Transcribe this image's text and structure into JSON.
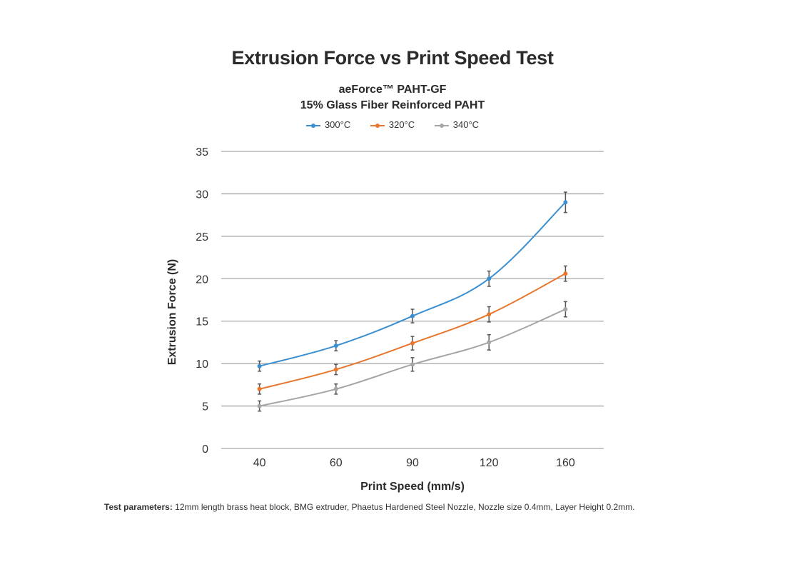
{
  "chart_data": {
    "type": "line",
    "title": "Extrusion Force vs Print Speed Test",
    "subtitle_1": "aeForce™ PAHT-GF",
    "subtitle_2": "15% Glass Fiber Reinforced PAHT",
    "xlabel": "Print Speed (mm/s)",
    "ylabel": "Extrusion Force (N)",
    "categories": [
      "40",
      "60",
      "90",
      "120",
      "160"
    ],
    "ylim": [
      0,
      35
    ],
    "yticks": [
      0,
      5,
      10,
      15,
      20,
      25,
      30,
      35
    ],
    "grid": "horizontal",
    "legend_position": "top-center",
    "error_bars": true,
    "series": [
      {
        "name": "300°C",
        "color": "#3a8fd0",
        "values": [
          9.7,
          12.1,
          15.6,
          20.0,
          29.0
        ],
        "errors": [
          0.6,
          0.6,
          0.8,
          0.9,
          1.2
        ]
      },
      {
        "name": "320°C",
        "color": "#e8762d",
        "values": [
          7.0,
          9.3,
          12.4,
          15.8,
          20.6
        ],
        "errors": [
          0.6,
          0.6,
          0.8,
          0.9,
          0.9
        ]
      },
      {
        "name": "340°C",
        "color": "#a5a5a5",
        "values": [
          5.0,
          7.0,
          9.9,
          12.5,
          16.4
        ],
        "errors": [
          0.6,
          0.6,
          0.8,
          0.9,
          0.9
        ]
      }
    ]
  },
  "footnote": {
    "label": "Test parameters:",
    "text": " 12mm length brass heat block, BMG extruder, Phaetus Hardened Steel Nozzle, Nozzle size 0.4mm, Layer Height 0.2mm."
  }
}
